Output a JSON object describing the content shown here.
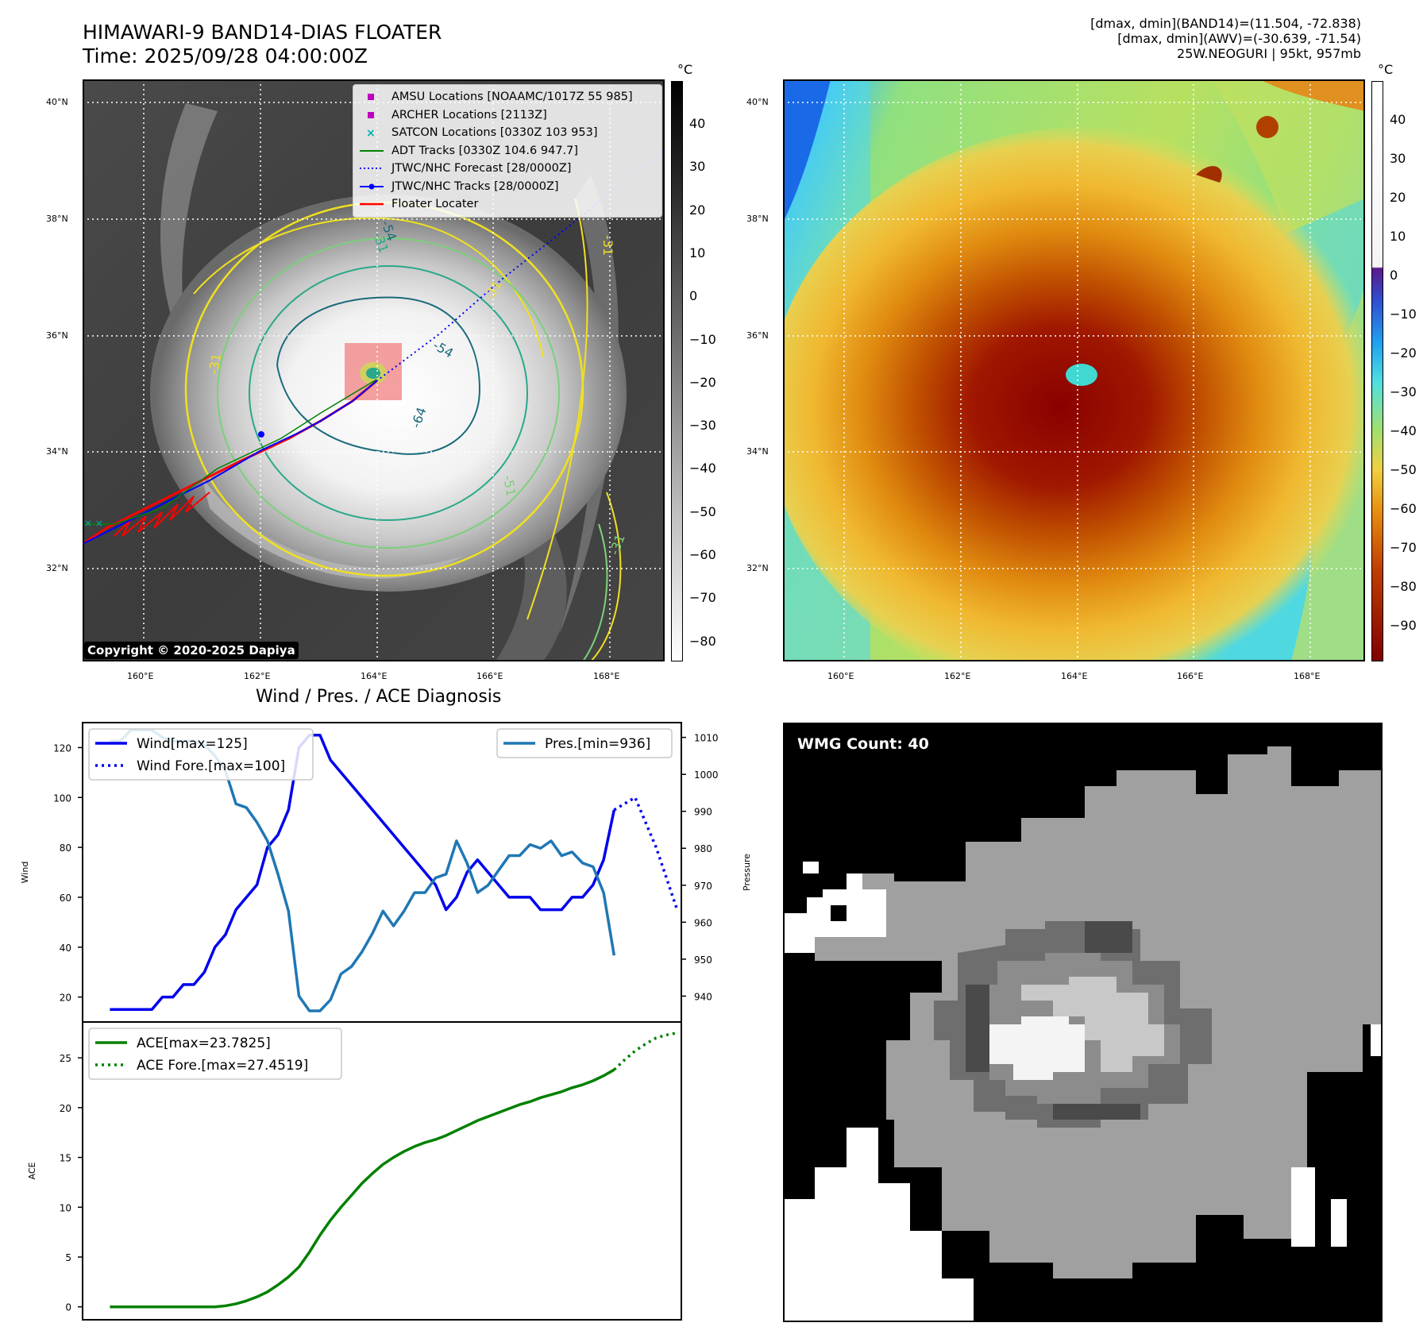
{
  "header": {
    "title_line1": "HIMAWARI-9 BAND14-DIAS FLOATER",
    "title_line2": "Time: 2025/09/28 04:00:00Z",
    "info_line1": "[dmax, dmin](BAND14)=(11.504, -72.838)",
    "info_line2": "[dmax, dmin](AWV)=(-30.639, -71.54)",
    "info_line3": "25W.NEOGURI | 95kt, 957mb"
  },
  "map_common": {
    "lat_labels": [
      "40°N",
      "38°N",
      "36°N",
      "34°N",
      "32°N"
    ],
    "lon_labels": [
      "160°E",
      "162°E",
      "164°E",
      "166°E",
      "168°E"
    ]
  },
  "ir_panel": {
    "colorbar_unit": "°C",
    "colorbar_ticks": [
      "40",
      "30",
      "20",
      "10",
      "0",
      "−10",
      "−20",
      "−30",
      "−40",
      "−50",
      "−60",
      "−70",
      "−80"
    ],
    "copyright": "Copyright © 2020-2025 Dapiya",
    "contour_labels": [
      "-31",
      "-54",
      "-64",
      "-51",
      "-31",
      "-31",
      "-31",
      "-31",
      "-54"
    ],
    "legend": [
      {
        "label": "AMSU Locations [NOAAMC/1017Z 55 985]",
        "color": "#c000c0",
        "marker": "square"
      },
      {
        "label": "ARCHER Locations [2113Z]",
        "color": "#c000c0",
        "marker": "square"
      },
      {
        "label": "SATCON Locations [0330Z 103 953]",
        "color": "#00b0b0",
        "marker": "x"
      },
      {
        "label": "ADT Tracks [0330Z 104.6 947.7]",
        "color": "#008000",
        "marker": "line"
      },
      {
        "label": "JTWC/NHC Forecast [28/0000Z]",
        "color": "#0000ff",
        "marker": "dotted"
      },
      {
        "label": "JTWC/NHC Tracks [28/0000Z]",
        "color": "#0000ff",
        "marker": "line-dot"
      },
      {
        "label": "Floater Locater",
        "color": "#ff0000",
        "marker": "line"
      }
    ]
  },
  "awv_panel": {
    "colorbar_unit": "°C",
    "colorbar_ticks": [
      "40",
      "30",
      "20",
      "10",
      "0",
      "−10",
      "−20",
      "−30",
      "−40",
      "−50",
      "−60",
      "−70",
      "−80",
      "−90"
    ]
  },
  "wmg_panel": {
    "label": "WMG Count: 40"
  },
  "chart_data": [
    {
      "type": "line",
      "title": "Wind / Pres. / ACE Diagnosis",
      "ylabel": "Wind",
      "y2label": "Pressure",
      "ylim": [
        10,
        130
      ],
      "y2lim": [
        933,
        1014
      ],
      "yticks": [
        20,
        40,
        60,
        80,
        100,
        120
      ],
      "y2ticks": [
        940,
        950,
        960,
        970,
        980,
        990,
        1000,
        1010
      ],
      "legend_left": [
        "Wind[max=125]",
        "Wind Fore.[max=100]"
      ],
      "legend_right": [
        "Pres.[min=936]"
      ],
      "series": [
        {
          "name": "Wind[max=125]",
          "color": "#0000ee",
          "style": "solid",
          "x": [
            0,
            1,
            2,
            3,
            4,
            5,
            6,
            7,
            8,
            9,
            10,
            11,
            12,
            13,
            14,
            15,
            16,
            17,
            18,
            19,
            20,
            21,
            22,
            23,
            24,
            25,
            26,
            27,
            28,
            29,
            30,
            31,
            32,
            33,
            34,
            35,
            36,
            37,
            38,
            39,
            40,
            41,
            42,
            43,
            44,
            45,
            46,
            47,
            48
          ],
          "values": [
            15,
            15,
            15,
            15,
            15,
            20,
            20,
            25,
            25,
            30,
            40,
            45,
            55,
            60,
            65,
            80,
            85,
            95,
            120,
            125,
            125,
            115,
            110,
            105,
            100,
            95,
            90,
            85,
            80,
            75,
            70,
            65,
            55,
            60,
            70,
            75,
            70,
            65,
            60,
            60,
            60,
            55,
            55,
            55,
            60,
            60,
            65,
            75,
            95
          ]
        },
        {
          "name": "Wind Fore.[max=100]",
          "color": "#0000ee",
          "style": "dotted",
          "x": [
            48,
            50,
            52,
            54
          ],
          "values": [
            95,
            100,
            80,
            55
          ]
        },
        {
          "name": "Pres.[min=936]",
          "color": "#1f77b4",
          "style": "solid",
          "axis": "y2",
          "x": [
            0,
            1,
            2,
            3,
            4,
            5,
            6,
            7,
            8,
            9,
            10,
            11,
            12,
            13,
            14,
            15,
            16,
            17,
            18,
            19,
            20,
            21,
            22,
            23,
            24,
            25,
            26,
            27,
            28,
            29,
            30,
            31,
            32,
            33,
            34,
            35,
            36,
            37,
            38,
            39,
            40,
            41,
            42,
            43,
            44,
            45,
            46,
            47,
            48
          ],
          "values": [
            1009,
            1009,
            1012,
            1012,
            1012,
            1010,
            1009,
            1009,
            1009,
            1008,
            1005,
            1001,
            992,
            991,
            987,
            982,
            973,
            963,
            940,
            936,
            936,
            939,
            946,
            948,
            952,
            957,
            963,
            959,
            963,
            968,
            968,
            972,
            973,
            982,
            976,
            968,
            970,
            974,
            978,
            978,
            981,
            980,
            982,
            978,
            979,
            976,
            975,
            968,
            951
          ]
        }
      ]
    },
    {
      "type": "line",
      "ylabel": "ACE",
      "ylim": [
        -1.3,
        28.6
      ],
      "yticks": [
        0,
        5,
        10,
        15,
        20,
        25
      ],
      "legend": [
        "ACE[max=23.7825]",
        "ACE Fore.[max=27.4519]"
      ],
      "series": [
        {
          "name": "ACE[max=23.7825]",
          "color": "#008000",
          "style": "solid",
          "x": [
            0,
            2,
            4,
            6,
            8,
            9,
            10,
            11,
            12,
            13,
            14,
            15,
            16,
            17,
            18,
            19,
            20,
            21,
            22,
            23,
            24,
            25,
            26,
            27,
            28,
            29,
            30,
            31,
            32,
            33,
            34,
            35,
            36,
            37,
            38,
            39,
            40,
            41,
            42,
            43,
            44,
            45,
            46,
            47,
            48
          ],
          "values": [
            0,
            0,
            0,
            0,
            0,
            0,
            0,
            0.1,
            0.3,
            0.6,
            1.0,
            1.5,
            2.2,
            3.0,
            4.0,
            5.5,
            7.2,
            8.7,
            10.0,
            11.2,
            12.4,
            13.4,
            14.3,
            15.0,
            15.6,
            16.1,
            16.5,
            16.8,
            17.2,
            17.7,
            18.2,
            18.7,
            19.1,
            19.5,
            19.9,
            20.3,
            20.6,
            21.0,
            21.3,
            21.6,
            22.0,
            22.3,
            22.7,
            23.2,
            23.8
          ]
        },
        {
          "name": "ACE Fore.[max=27.4519]",
          "color": "#008000",
          "style": "dotted",
          "x": [
            48,
            49,
            50,
            51,
            52,
            53,
            54
          ],
          "values": [
            23.8,
            24.8,
            25.7,
            26.4,
            27.0,
            27.3,
            27.5
          ]
        }
      ]
    }
  ]
}
